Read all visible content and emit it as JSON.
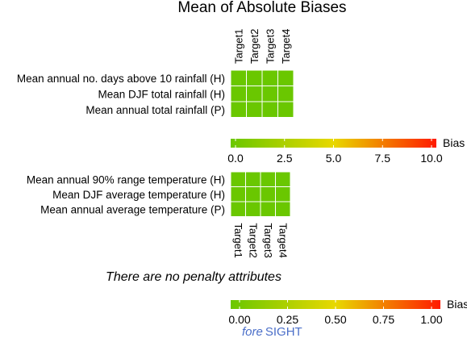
{
  "title": "Mean of Absolute Biases",
  "note": "There are no penalty attributes",
  "logo": {
    "part1": "fore",
    "part2": "SIGHT"
  },
  "colors": {
    "low": "#6ac700",
    "mid": "#e8d800",
    "high": "#ff1a00",
    "grid": "#ffffff",
    "logo": "#4b6fc9"
  },
  "chart_data": [
    {
      "type": "heatmap",
      "columns": [
        "Target1",
        "Target2",
        "Target3",
        "Target4"
      ],
      "rows": [
        "Mean annual no. days above 10 rainfall (H)",
        "Mean DJF total rainfall (H)",
        "Mean annual total rainfall (P)"
      ],
      "values": [
        [
          0,
          0,
          0,
          0
        ],
        [
          0,
          0,
          0,
          0
        ],
        [
          0,
          0,
          0,
          0
        ]
      ],
      "legend": {
        "title": "Bias",
        "ticks": [
          "0.0",
          "2.5",
          "5.0",
          "7.5",
          "10.0"
        ],
        "range": [
          0,
          10
        ]
      }
    },
    {
      "type": "heatmap",
      "columns": [
        "Target1",
        "Target2",
        "Target3",
        "Target4"
      ],
      "rows": [
        "Mean annual 90% range temperature (H)",
        "Mean DJF average temperature (H)",
        "Mean annual average temperature (P)"
      ],
      "values": [
        [
          0,
          0,
          0,
          0
        ],
        [
          0,
          0,
          0,
          0
        ],
        [
          0,
          0,
          0,
          0
        ]
      ],
      "legend": {
        "title": "Bias",
        "ticks": [
          "0.00",
          "0.25",
          "0.50",
          "0.75",
          "1.00"
        ],
        "range": [
          0,
          1
        ]
      }
    }
  ]
}
